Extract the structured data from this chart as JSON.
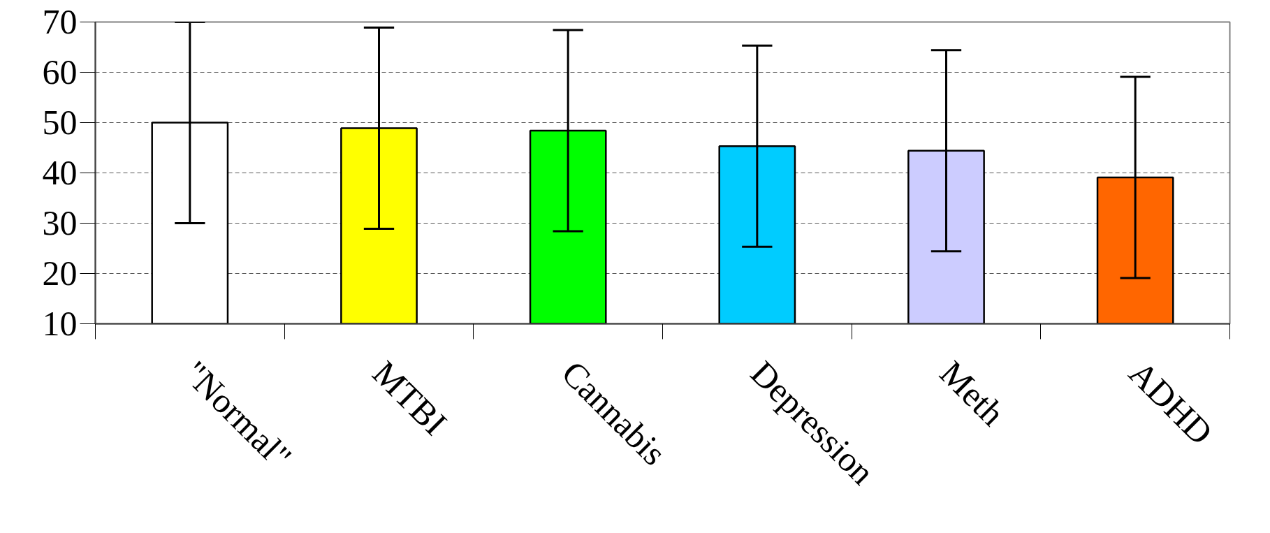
{
  "chart_data": {
    "type": "bar",
    "categories": [
      "\"Normal\"",
      "MTBI",
      "Cannabis",
      "Depression",
      "Meth",
      "ADHD"
    ],
    "values": [
      50,
      48.9,
      48.4,
      45.3,
      44.4,
      39.1
    ],
    "errors": [
      20,
      20,
      20,
      20,
      20,
      20
    ],
    "colors": [
      "#ffffff",
      "#ffff00",
      "#00ff00",
      "#00ccff",
      "#ccccff",
      "#ff6600"
    ],
    "ylim": [
      10,
      70
    ],
    "yticks": [
      10,
      20,
      30,
      40,
      50,
      60,
      70
    ],
    "grid": "y"
  }
}
